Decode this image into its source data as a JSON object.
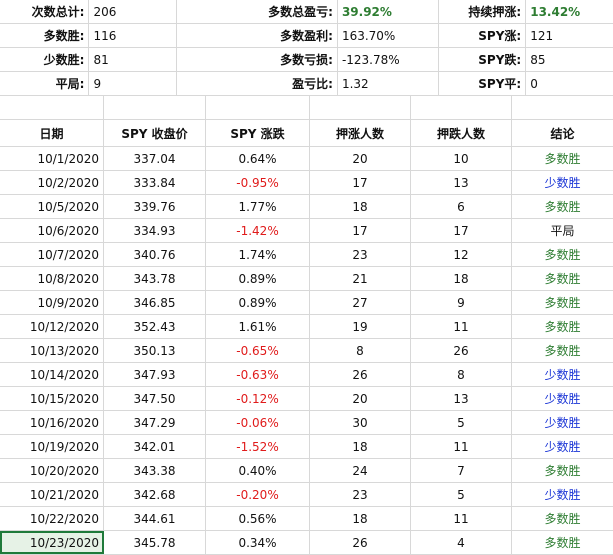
{
  "summary": [
    [
      "次数总计:",
      "206",
      "多数总盈亏:",
      "39.92%",
      "持续押涨:",
      "13.42%"
    ],
    [
      "多数胜:",
      "116",
      "多数盈利:",
      "163.70%",
      "SPY涨:",
      "121"
    ],
    [
      "少数胜:",
      "81",
      "多数亏损:",
      "-123.78%",
      "SPY跌:",
      "85"
    ],
    [
      "平局:",
      "9",
      "盈亏比:",
      "1.32",
      "SPY平:",
      "0"
    ]
  ],
  "headers": [
    "日期",
    "SPY 收盘价",
    "SPY 涨跌",
    "押涨人数",
    "押跌人数",
    "结论"
  ],
  "rows": [
    [
      "10/1/2020",
      "337.04",
      "0.64%",
      "20",
      "10",
      "多数胜"
    ],
    [
      "10/2/2020",
      "333.84",
      "-0.95%",
      "17",
      "13",
      "少数胜"
    ],
    [
      "10/5/2020",
      "339.76",
      "1.77%",
      "18",
      "6",
      "多数胜"
    ],
    [
      "10/6/2020",
      "334.93",
      "-1.42%",
      "17",
      "17",
      "平局"
    ],
    [
      "10/7/2020",
      "340.76",
      "1.74%",
      "23",
      "12",
      "多数胜"
    ],
    [
      "10/8/2020",
      "343.78",
      "0.89%",
      "21",
      "18",
      "多数胜"
    ],
    [
      "10/9/2020",
      "346.85",
      "0.89%",
      "27",
      "9",
      "多数胜"
    ],
    [
      "10/12/2020",
      "352.43",
      "1.61%",
      "19",
      "11",
      "多数胜"
    ],
    [
      "10/13/2020",
      "350.13",
      "-0.65%",
      "8",
      "26",
      "多数胜"
    ],
    [
      "10/14/2020",
      "347.93",
      "-0.63%",
      "26",
      "8",
      "少数胜"
    ],
    [
      "10/15/2020",
      "347.50",
      "-0.12%",
      "20",
      "13",
      "少数胜"
    ],
    [
      "10/16/2020",
      "347.29",
      "-0.06%",
      "30",
      "5",
      "少数胜"
    ],
    [
      "10/19/2020",
      "342.01",
      "-1.52%",
      "18",
      "11",
      "少数胜"
    ],
    [
      "10/20/2020",
      "343.38",
      "0.40%",
      "24",
      "7",
      "多数胜"
    ],
    [
      "10/21/2020",
      "342.68",
      "-0.20%",
      "23",
      "5",
      "少数胜"
    ],
    [
      "10/22/2020",
      "344.61",
      "0.56%",
      "18",
      "11",
      "多数胜"
    ],
    [
      "10/23/2020",
      "345.78",
      "0.34%",
      "26",
      "4",
      "多数胜"
    ]
  ],
  "colors": {
    "majority_win": "#2e7d32",
    "minority_win": "#1a35d6",
    "negative": "#e01b1b",
    "selection": "#1f7a3a"
  },
  "selected_cell": "10/23/2020"
}
